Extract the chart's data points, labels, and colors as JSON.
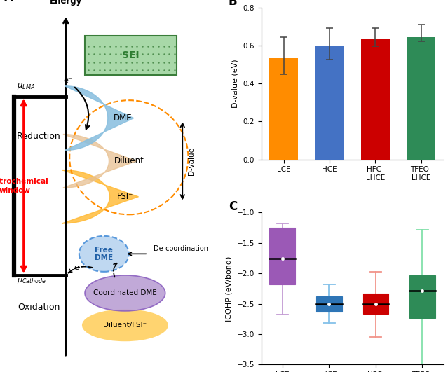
{
  "panel_B": {
    "categories": [
      "LCE",
      "HCE",
      "HFC-\nLHCE",
      "TFEO-\nLHCE"
    ],
    "values": [
      0.533,
      0.6,
      0.635,
      0.645
    ],
    "errors_upper": [
      0.11,
      0.09,
      0.055,
      0.065
    ],
    "errors_lower": [
      0.085,
      0.075,
      0.04,
      0.025
    ],
    "colors": [
      "#FF8C00",
      "#4472C4",
      "#CC0000",
      "#2E8B57"
    ],
    "ylabel": "D-value (eV)",
    "ylim": [
      0.0,
      0.8
    ],
    "yticks": [
      0.0,
      0.2,
      0.4,
      0.6,
      0.8
    ],
    "label": "B"
  },
  "panel_C": {
    "categories": [
      "LCE",
      "HCE",
      "HFC-\nLHCE",
      "TFEO-\nLHCE"
    ],
    "box_colors": [
      "#9B59B6",
      "#2E75B6",
      "#CC0000",
      "#2E8B57"
    ],
    "whisker_colors": [
      "#C39BD3",
      "#85C1E9",
      "#F1948A",
      "#82E0AA"
    ],
    "median": [
      -1.75,
      -2.5,
      -2.5,
      -2.28
    ],
    "q1": [
      -2.18,
      -2.63,
      -2.67,
      -2.73
    ],
    "q3": [
      -1.25,
      -2.38,
      -2.33,
      -2.03
    ],
    "whisker_low": [
      -2.68,
      -2.82,
      -3.05,
      -3.5
    ],
    "whisker_high": [
      -1.18,
      -2.18,
      -1.98,
      -1.28
    ],
    "ylabel": "ICOHP (eV/bond)",
    "ylim": [
      -3.5,
      -1.0
    ],
    "yticks": [
      -3.5,
      -3.0,
      -2.5,
      -2.0,
      -1.5,
      -1.0
    ],
    "label": "C"
  }
}
